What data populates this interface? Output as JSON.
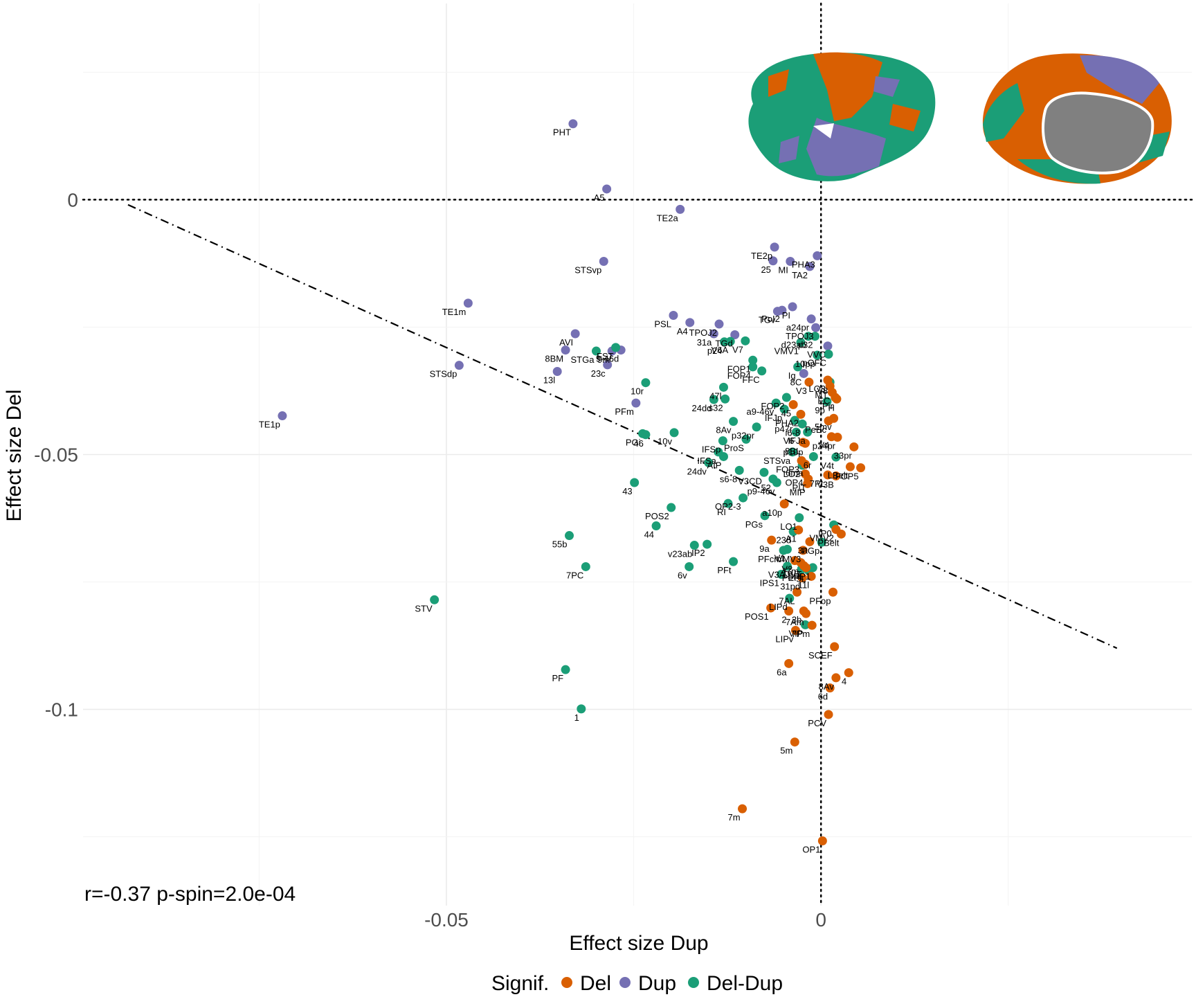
{
  "chart_data": {
    "type": "scatter",
    "xlabel": "Effect size Dup",
    "ylabel": "Effect size Del",
    "xlim": [
      -0.0985,
      0.0495
    ],
    "ylim": [
      -0.1385,
      0.0385
    ],
    "x_ticks": [
      {
        "value": -0.05,
        "label": "-0.05"
      },
      {
        "value": 0,
        "label": "0"
      }
    ],
    "y_ticks": [
      {
        "value": 0,
        "label": "0"
      },
      {
        "value": -0.05,
        "label": "-0.05"
      },
      {
        "value": -0.1,
        "label": "-0.1"
      }
    ],
    "grid": true,
    "reference_lines": {
      "x": 0,
      "y": 0,
      "style": "dotted"
    },
    "fit_line": {
      "style": "dashdot",
      "from": [
        -0.0925,
        -0.001
      ],
      "to": [
        0.0395,
        -0.088
      ]
    },
    "annotation": "r=-0.37 p-spin=2.0e-04",
    "legend": {
      "title": "Signif.",
      "position": "bottom",
      "entries": [
        {
          "key": "Del",
          "label": "Del",
          "color": "#d95f02"
        },
        {
          "key": "Dup",
          "label": "Dup",
          "color": "#7570b3"
        },
        {
          "key": "DelDup",
          "label": "Del-Dup",
          "color": "#1b9e77"
        }
      ]
    },
    "inset_images": [
      "brain-lateral-view",
      "brain-medial-view"
    ],
    "points": [
      {
        "label": "PHT",
        "x": -0.0331,
        "y": 0.0149,
        "group": "Dup"
      },
      {
        "label": "A5",
        "x": -0.0286,
        "y": 0.0021,
        "group": "Dup"
      },
      {
        "label": "TE2a",
        "x": -0.0188,
        "y": -0.0019,
        "group": "Dup"
      },
      {
        "label": "TE2p",
        "x": -0.0062,
        "y": -0.0093,
        "group": "Dup"
      },
      {
        "label": "25",
        "x": -0.0064,
        "y": -0.012,
        "group": "Dup"
      },
      {
        "label": "MI",
        "x": -0.0041,
        "y": -0.0121,
        "group": "Dup"
      },
      {
        "label": "PHA3",
        "x": -0.0005,
        "y": -0.011,
        "group": "Dup"
      },
      {
        "label": "TA2",
        "x": -0.0015,
        "y": -0.0131,
        "group": "Dup"
      },
      {
        "label": "STSvp",
        "x": -0.029,
        "y": -0.0121,
        "group": "Dup"
      },
      {
        "label": "TE1m",
        "x": -0.0471,
        "y": -0.0203,
        "group": "Dup"
      },
      {
        "label": "TE1p",
        "x": -0.0719,
        "y": -0.0424,
        "group": "Dup"
      },
      {
        "label": "PSL",
        "x": -0.0197,
        "y": -0.0227,
        "group": "Dup"
      },
      {
        "label": "A4",
        "x": -0.0175,
        "y": -0.0241,
        "group": "Dup"
      },
      {
        "label": "TPOJ2",
        "x": -0.0136,
        "y": -0.0244,
        "group": "Dup"
      },
      {
        "label": "31a",
        "x": -0.0143,
        "y": -0.0263,
        "group": "Dup"
      },
      {
        "label": "PI",
        "x": -0.0038,
        "y": -0.021,
        "group": "Dup"
      },
      {
        "label": "PoI2",
        "x": -0.0052,
        "y": -0.0217,
        "group": "Dup"
      },
      {
        "label": "a24pr",
        "x": -0.0013,
        "y": -0.0234,
        "group": "Dup"
      },
      {
        "label": "TGv",
        "x": -0.0058,
        "y": -0.0219,
        "group": "Dup"
      },
      {
        "label": "TPOJ3",
        "x": -0.0007,
        "y": -0.0251,
        "group": "Dup"
      },
      {
        "label": "TGd",
        "x": -0.0115,
        "y": -0.0265,
        "group": "Dup"
      },
      {
        "label": "AVI",
        "x": -0.0328,
        "y": -0.0263,
        "group": "Dup"
      },
      {
        "label": "8BM",
        "x": -0.0341,
        "y": -0.0295,
        "group": "Dup"
      },
      {
        "label": "9m",
        "x": -0.0279,
        "y": -0.0297,
        "group": "Dup"
      },
      {
        "label": "9-46d",
        "x": -0.0267,
        "y": -0.0295,
        "group": "Dup"
      },
      {
        "label": "23c",
        "x": -0.0285,
        "y": -0.0324,
        "group": "Dup"
      },
      {
        "label": "STSdp",
        "x": -0.0483,
        "y": -0.0325,
        "group": "Dup"
      },
      {
        "label": "13l",
        "x": -0.0352,
        "y": -0.0337,
        "group": "Dup"
      },
      {
        "label": "VVC",
        "x": 0.0009,
        "y": -0.0287,
        "group": "Dup"
      },
      {
        "label": "8C",
        "x": -0.0023,
        "y": -0.0341,
        "group": "Dup"
      },
      {
        "label": "PFm",
        "x": -0.0247,
        "y": -0.0399,
        "group": "Dup"
      },
      {
        "label": "V7",
        "x": -0.0101,
        "y": -0.0277,
        "group": "DelDup"
      },
      {
        "label": "V6A",
        "x": -0.0121,
        "y": -0.0278,
        "group": "DelDup"
      },
      {
        "label": "p24",
        "x": -0.0129,
        "y": -0.0279,
        "group": "DelDup"
      },
      {
        "label": "STGa",
        "x": -0.03,
        "y": -0.0297,
        "group": "DelDup"
      },
      {
        "label": "FST",
        "x": -0.0274,
        "y": -0.029,
        "group": "DelDup"
      },
      {
        "label": "d23ab",
        "x": -0.0017,
        "y": -0.0268,
        "group": "DelDup"
      },
      {
        "label": "p32",
        "x": -0.0008,
        "y": -0.0268,
        "group": "DelDup"
      },
      {
        "label": "VMV1",
        "x": -0.0027,
        "y": -0.028,
        "group": "DelDup"
      },
      {
        "label": "FOP1",
        "x": -0.0091,
        "y": -0.0315,
        "group": "DelDup"
      },
      {
        "label": "FOP4",
        "x": -0.0091,
        "y": -0.0328,
        "group": "DelDup"
      },
      {
        "label": "FFC",
        "x": -0.0079,
        "y": -0.0336,
        "group": "DelDup"
      },
      {
        "label": "Ig",
        "x": -0.0031,
        "y": -0.0328,
        "group": "DelDup"
      },
      {
        "label": "10pp",
        "x": -0.0005,
        "y": -0.0305,
        "group": "DelDup"
      },
      {
        "label": "pOFC",
        "x": 0.001,
        "y": -0.0303,
        "group": "DelDup"
      },
      {
        "label": "V8",
        "x": 0.0012,
        "y": -0.0358,
        "group": "DelDup"
      },
      {
        "label": "10r",
        "x": -0.0234,
        "y": -0.0359,
        "group": "DelDup"
      },
      {
        "label": "47l",
        "x": -0.013,
        "y": -0.0368,
        "group": "DelDup"
      },
      {
        "label": "24dd",
        "x": -0.0143,
        "y": -0.0392,
        "group": "DelDup"
      },
      {
        "label": "s32",
        "x": -0.0128,
        "y": -0.0391,
        "group": "DelDup"
      },
      {
        "label": "a9-46v",
        "x": -0.006,
        "y": -0.0399,
        "group": "DelDup"
      },
      {
        "label": "FOP2",
        "x": -0.0046,
        "y": -0.0388,
        "group": "DelDup"
      },
      {
        "label": "9p",
        "x": 0.0008,
        "y": -0.0396,
        "group": "DelDup"
      },
      {
        "label": "IFJp",
        "x": -0.0049,
        "y": -0.0411,
        "group": "DelDup"
      },
      {
        "label": "PGi",
        "x": -0.0238,
        "y": -0.0459,
        "group": "DelDup"
      },
      {
        "label": "46",
        "x": -0.0234,
        "y": -0.0461,
        "group": "DelDup"
      },
      {
        "label": "10v",
        "x": -0.0196,
        "y": -0.0457,
        "group": "DelDup"
      },
      {
        "label": "8Av",
        "x": -0.0117,
        "y": -0.0435,
        "group": "DelDup"
      },
      {
        "label": "p32pr",
        "x": -0.0086,
        "y": -0.0446,
        "group": "DelDup"
      },
      {
        "label": "p47r",
        "x": -0.0035,
        "y": -0.0433,
        "group": "DelDup"
      },
      {
        "label": "i6-8",
        "x": -0.0025,
        "y": -0.044,
        "group": "DelDup"
      },
      {
        "label": "IFJa",
        "x": -0.0018,
        "y": -0.0456,
        "group": "DelDup"
      },
      {
        "label": "IFSp",
        "x": -0.0131,
        "y": -0.0473,
        "group": "DelDup"
      },
      {
        "label": "ProS",
        "x": -0.01,
        "y": -0.047,
        "group": "DelDup"
      },
      {
        "label": "V6",
        "x": -0.0033,
        "y": -0.0456,
        "group": "DelDup"
      },
      {
        "label": "IFSa",
        "x": -0.0137,
        "y": -0.0495,
        "group": "DelDup"
      },
      {
        "label": "AIP",
        "x": -0.013,
        "y": -0.0504,
        "group": "DelDup"
      },
      {
        "label": "24dv",
        "x": -0.015,
        "y": -0.0516,
        "group": "DelDup"
      },
      {
        "label": "STSva",
        "x": -0.0038,
        "y": -0.0495,
        "group": "DelDup"
      },
      {
        "label": "LO2",
        "x": -0.0025,
        "y": -0.0521,
        "group": "DelDup"
      },
      {
        "label": "6r",
        "x": -0.001,
        "y": -0.0504,
        "group": "DelDup"
      },
      {
        "label": "V4t",
        "x": 0.002,
        "y": -0.0505,
        "group": "DelDup"
      },
      {
        "label": "s6-8",
        "x": -0.0109,
        "y": -0.0531,
        "group": "DelDup"
      },
      {
        "label": "V3CD",
        "x": -0.0076,
        "y": -0.0535,
        "group": "DelDup"
      },
      {
        "label": "52",
        "x": -0.0064,
        "y": -0.0548,
        "group": "DelDup"
      },
      {
        "label": "p9-46v",
        "x": -0.0059,
        "y": -0.0555,
        "group": "DelDup"
      },
      {
        "label": "43",
        "x": -0.0249,
        "y": -0.0555,
        "group": "DelDup"
      },
      {
        "label": "OP2-3",
        "x": -0.0104,
        "y": -0.0585,
        "group": "DelDup"
      },
      {
        "label": "POS2",
        "x": -0.02,
        "y": -0.0604,
        "group": "DelDup"
      },
      {
        "label": "RI",
        "x": -0.0124,
        "y": -0.0596,
        "group": "DelDup"
      },
      {
        "label": "LO1",
        "x": -0.0029,
        "y": -0.0624,
        "group": "DelDup"
      },
      {
        "label": "PGs",
        "x": -0.0075,
        "y": -0.062,
        "group": "DelDup"
      },
      {
        "label": "23d",
        "x": -0.0037,
        "y": -0.0651,
        "group": "DelDup"
      },
      {
        "label": "IP0",
        "x": 0.0017,
        "y": -0.0638,
        "group": "DelDup"
      },
      {
        "label": "PGp",
        "x": 0.0001,
        "y": -0.0672,
        "group": "DelDup"
      },
      {
        "label": "44",
        "x": -0.022,
        "y": -0.064,
        "group": "DelDup"
      },
      {
        "label": "v23ab",
        "x": -0.0169,
        "y": -0.0678,
        "group": "DelDup"
      },
      {
        "label": "IP2",
        "x": -0.0152,
        "y": -0.0676,
        "group": "DelDup"
      },
      {
        "label": "PFcm",
        "x": -0.005,
        "y": -0.0688,
        "group": "DelDup"
      },
      {
        "label": "V1",
        "x": -0.0045,
        "y": -0.0686,
        "group": "DelDup"
      },
      {
        "label": "55b",
        "x": -0.0336,
        "y": -0.0659,
        "group": "DelDup"
      },
      {
        "label": "7PC",
        "x": -0.0314,
        "y": -0.072,
        "group": "DelDup"
      },
      {
        "label": "6v",
        "x": -0.0176,
        "y": -0.072,
        "group": "DelDup"
      },
      {
        "label": "PFt",
        "x": -0.0117,
        "y": -0.071,
        "group": "DelDup"
      },
      {
        "label": "V3A",
        "x": -0.0045,
        "y": -0.0719,
        "group": "DelDup"
      },
      {
        "label": "PEF",
        "x": -0.0026,
        "y": -0.0725,
        "group": "DelDup"
      },
      {
        "label": "5L",
        "x": -0.0017,
        "y": -0.0727,
        "group": "DelDup"
      },
      {
        "label": "IPS1",
        "x": -0.0053,
        "y": -0.0735,
        "group": "DelDup"
      },
      {
        "label": "IP1",
        "x": -0.0011,
        "y": -0.0722,
        "group": "DelDup"
      },
      {
        "label": "STV",
        "x": -0.0516,
        "y": -0.0785,
        "group": "DelDup"
      },
      {
        "label": "LIPd",
        "x": -0.0042,
        "y": -0.0782,
        "group": "DelDup"
      },
      {
        "label": "VIP",
        "x": -0.0021,
        "y": -0.0834,
        "group": "DelDup"
      },
      {
        "label": "PF",
        "x": -0.0341,
        "y": -0.0922,
        "group": "DelDup"
      },
      {
        "label": "1",
        "x": -0.032,
        "y": -0.0999,
        "group": "DelDup"
      },
      {
        "label": "V3",
        "x": -0.0016,
        "y": -0.0358,
        "group": "Del"
      },
      {
        "label": "LO3",
        "x": 0.0009,
        "y": -0.0354,
        "group": "Del"
      },
      {
        "label": "MT",
        "x": 0.0012,
        "y": -0.0366,
        "group": "Del"
      },
      {
        "label": "EC",
        "x": 0.0015,
        "y": -0.0378,
        "group": "Del"
      },
      {
        "label": "Pir",
        "x": 0.0019,
        "y": -0.0388,
        "group": "Del"
      },
      {
        "label": "H",
        "x": 0.0021,
        "y": -0.0391,
        "group": "Del"
      },
      {
        "label": "45",
        "x": -0.0037,
        "y": -0.0402,
        "group": "Del"
      },
      {
        "label": "PHA2",
        "x": -0.0027,
        "y": -0.0421,
        "group": "Del"
      },
      {
        "label": "5mv",
        "x": 0.0017,
        "y": -0.0429,
        "group": "Del"
      },
      {
        "label": "PeEc",
        "x": 0.001,
        "y": -0.0434,
        "group": "Del"
      },
      {
        "label": "p24pr",
        "x": 0.0022,
        "y": -0.0466,
        "group": "Del"
      },
      {
        "label": "V4",
        "x": 0.0014,
        "y": -0.0465,
        "group": "Del"
      },
      {
        "label": "33pr",
        "x": 0.0044,
        "y": -0.0485,
        "group": "Del"
      },
      {
        "label": "p10p",
        "x": -0.0021,
        "y": -0.0478,
        "group": "Del"
      },
      {
        "label": "8BL",
        "x": -0.0024,
        "y": -0.0476,
        "group": "Del"
      },
      {
        "label": "FOP3",
        "x": -0.0026,
        "y": -0.0512,
        "group": "Del"
      },
      {
        "label": "6ma",
        "x": -0.0021,
        "y": -0.0519,
        "group": "Del"
      },
      {
        "label": "OP4",
        "x": -0.0021,
        "y": -0.0538,
        "group": "Del"
      },
      {
        "label": "PIT",
        "x": -0.0017,
        "y": -0.0548,
        "group": "Del"
      },
      {
        "label": "MIP",
        "x": -0.0018,
        "y": -0.0557,
        "group": "Del"
      },
      {
        "label": "7PL",
        "x": 0.0009,
        "y": -0.054,
        "group": "Del"
      },
      {
        "label": "V3B",
        "x": 0.002,
        "y": -0.0542,
        "group": "Del"
      },
      {
        "label": "LBelt",
        "x": 0.0039,
        "y": -0.0524,
        "group": "Del"
      },
      {
        "label": "FOP5",
        "x": 0.0053,
        "y": -0.0526,
        "group": "Del"
      },
      {
        "label": "a10p",
        "x": -0.0049,
        "y": -0.0597,
        "group": "Del"
      },
      {
        "label": "9a",
        "x": -0.0066,
        "y": -0.0668,
        "group": "Del"
      },
      {
        "label": "A1",
        "x": -0.003,
        "y": -0.0648,
        "group": "Del"
      },
      {
        "label": "VMV2",
        "x": 0.002,
        "y": -0.0647,
        "group": "Del"
      },
      {
        "label": "3a",
        "x": -0.0015,
        "y": -0.0671,
        "group": "Del"
      },
      {
        "label": "PBelt",
        "x": 0.0027,
        "y": -0.0656,
        "group": "Del"
      },
      {
        "label": "VMV3",
        "x": -0.0024,
        "y": -0.0688,
        "group": "Del"
      },
      {
        "label": "47m",
        "x": -0.0027,
        "y": -0.0712,
        "group": "Del"
      },
      {
        "label": "V2",
        "x": -0.0035,
        "y": -0.0708,
        "group": "Del"
      },
      {
        "label": "DVT",
        "x": -0.0023,
        "y": -0.0718,
        "group": "Del"
      },
      {
        "label": "SFL",
        "x": -0.002,
        "y": -0.0722,
        "group": "Del"
      },
      {
        "label": "11l",
        "x": -0.0013,
        "y": -0.0739,
        "group": "Del"
      },
      {
        "label": "31pd",
        "x": -0.0025,
        "y": -0.0742,
        "group": "Del"
      },
      {
        "label": "7AL",
        "x": -0.0032,
        "y": -0.077,
        "group": "Del"
      },
      {
        "label": "PFop",
        "x": 0.0016,
        "y": -0.077,
        "group": "Del"
      },
      {
        "label": "POS1",
        "x": -0.0067,
        "y": -0.0801,
        "group": "Del"
      },
      {
        "label": "2",
        "x": -0.0043,
        "y": -0.0807,
        "group": "Del"
      },
      {
        "label": "3b",
        "x": -0.0023,
        "y": -0.0807,
        "group": "Del"
      },
      {
        "label": "7Am",
        "x": -0.002,
        "y": -0.0812,
        "group": "Del"
      },
      {
        "label": "7Pm",
        "x": -0.0012,
        "y": -0.0835,
        "group": "Del"
      },
      {
        "label": "LIPv",
        "x": -0.0034,
        "y": -0.0845,
        "group": "Del"
      },
      {
        "label": "SCEF",
        "x": 0.0018,
        "y": -0.0877,
        "group": "Del"
      },
      {
        "label": "6a",
        "x": -0.0043,
        "y": -0.091,
        "group": "Del"
      },
      {
        "label": "8Av",
        "x": 0.002,
        "y": -0.0938,
        "group": "Del"
      },
      {
        "label": "4",
        "x": 0.0037,
        "y": -0.0928,
        "group": "Del"
      },
      {
        "label": "6d",
        "x": 0.0012,
        "y": -0.0958,
        "group": "Del"
      },
      {
        "label": "PCV",
        "x": 0.001,
        "y": -0.101,
        "group": "Del"
      },
      {
        "label": "5m",
        "x": -0.0035,
        "y": -0.1064,
        "group": "Del"
      },
      {
        "label": "7m",
        "x": -0.0105,
        "y": -0.1195,
        "group": "Del"
      },
      {
        "label": "OP1",
        "x": 0.0002,
        "y": -0.1258,
        "group": "Del"
      }
    ]
  }
}
